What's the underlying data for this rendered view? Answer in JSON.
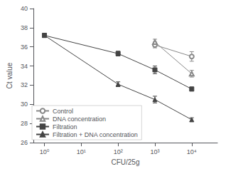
{
  "chart_data": {
    "type": "line",
    "xlabel": "CFU/25g",
    "ylabel": "Ct value",
    "log": "x",
    "xlim": [
      0.5,
      50000
    ],
    "xticks": [
      {
        "value": 1,
        "label": "10⁰"
      },
      {
        "value": 10,
        "label": "10¹"
      },
      {
        "value": 100,
        "label": "10²"
      },
      {
        "value": 1000,
        "label": "10³"
      },
      {
        "value": 10000,
        "label": "10⁴"
      }
    ],
    "ylim": [
      26,
      40
    ],
    "yticks": [
      26,
      28,
      30,
      32,
      34,
      36,
      38,
      40
    ],
    "grid": false,
    "legend": "lower left",
    "series": [
      {
        "name": "Control",
        "color": "#888888",
        "marker": "open circle",
        "line_style": "solid",
        "x": [
          1000,
          10000
        ],
        "values": [
          36.2,
          35.0
        ],
        "yerr": [
          0.3,
          0.5
        ]
      },
      {
        "name": "DNA concentration",
        "color": "#888888",
        "marker": "open triangle",
        "line_style": "solid",
        "x": [
          1000,
          10000
        ],
        "values": [
          36.5,
          33.2
        ],
        "yerr": [
          0.3,
          0.35
        ]
      },
      {
        "name": "Filtration",
        "color": "#444444",
        "marker": "square",
        "line_style": "solid",
        "x": [
          1,
          100,
          1000,
          10000
        ],
        "values": [
          37.2,
          35.3,
          33.6,
          31.6
        ],
        "yerr": [
          0.2,
          0.25,
          0.4,
          0.2
        ]
      },
      {
        "name": "Filtration + DNA concentration",
        "color": "#444444",
        "marker": "triangle",
        "line_style": "solid",
        "x": [
          1,
          100,
          1000,
          10000
        ],
        "values": [
          37.2,
          32.1,
          30.5,
          28.4
        ],
        "yerr": [
          0.2,
          0.25,
          0.35,
          0.2
        ]
      }
    ]
  }
}
